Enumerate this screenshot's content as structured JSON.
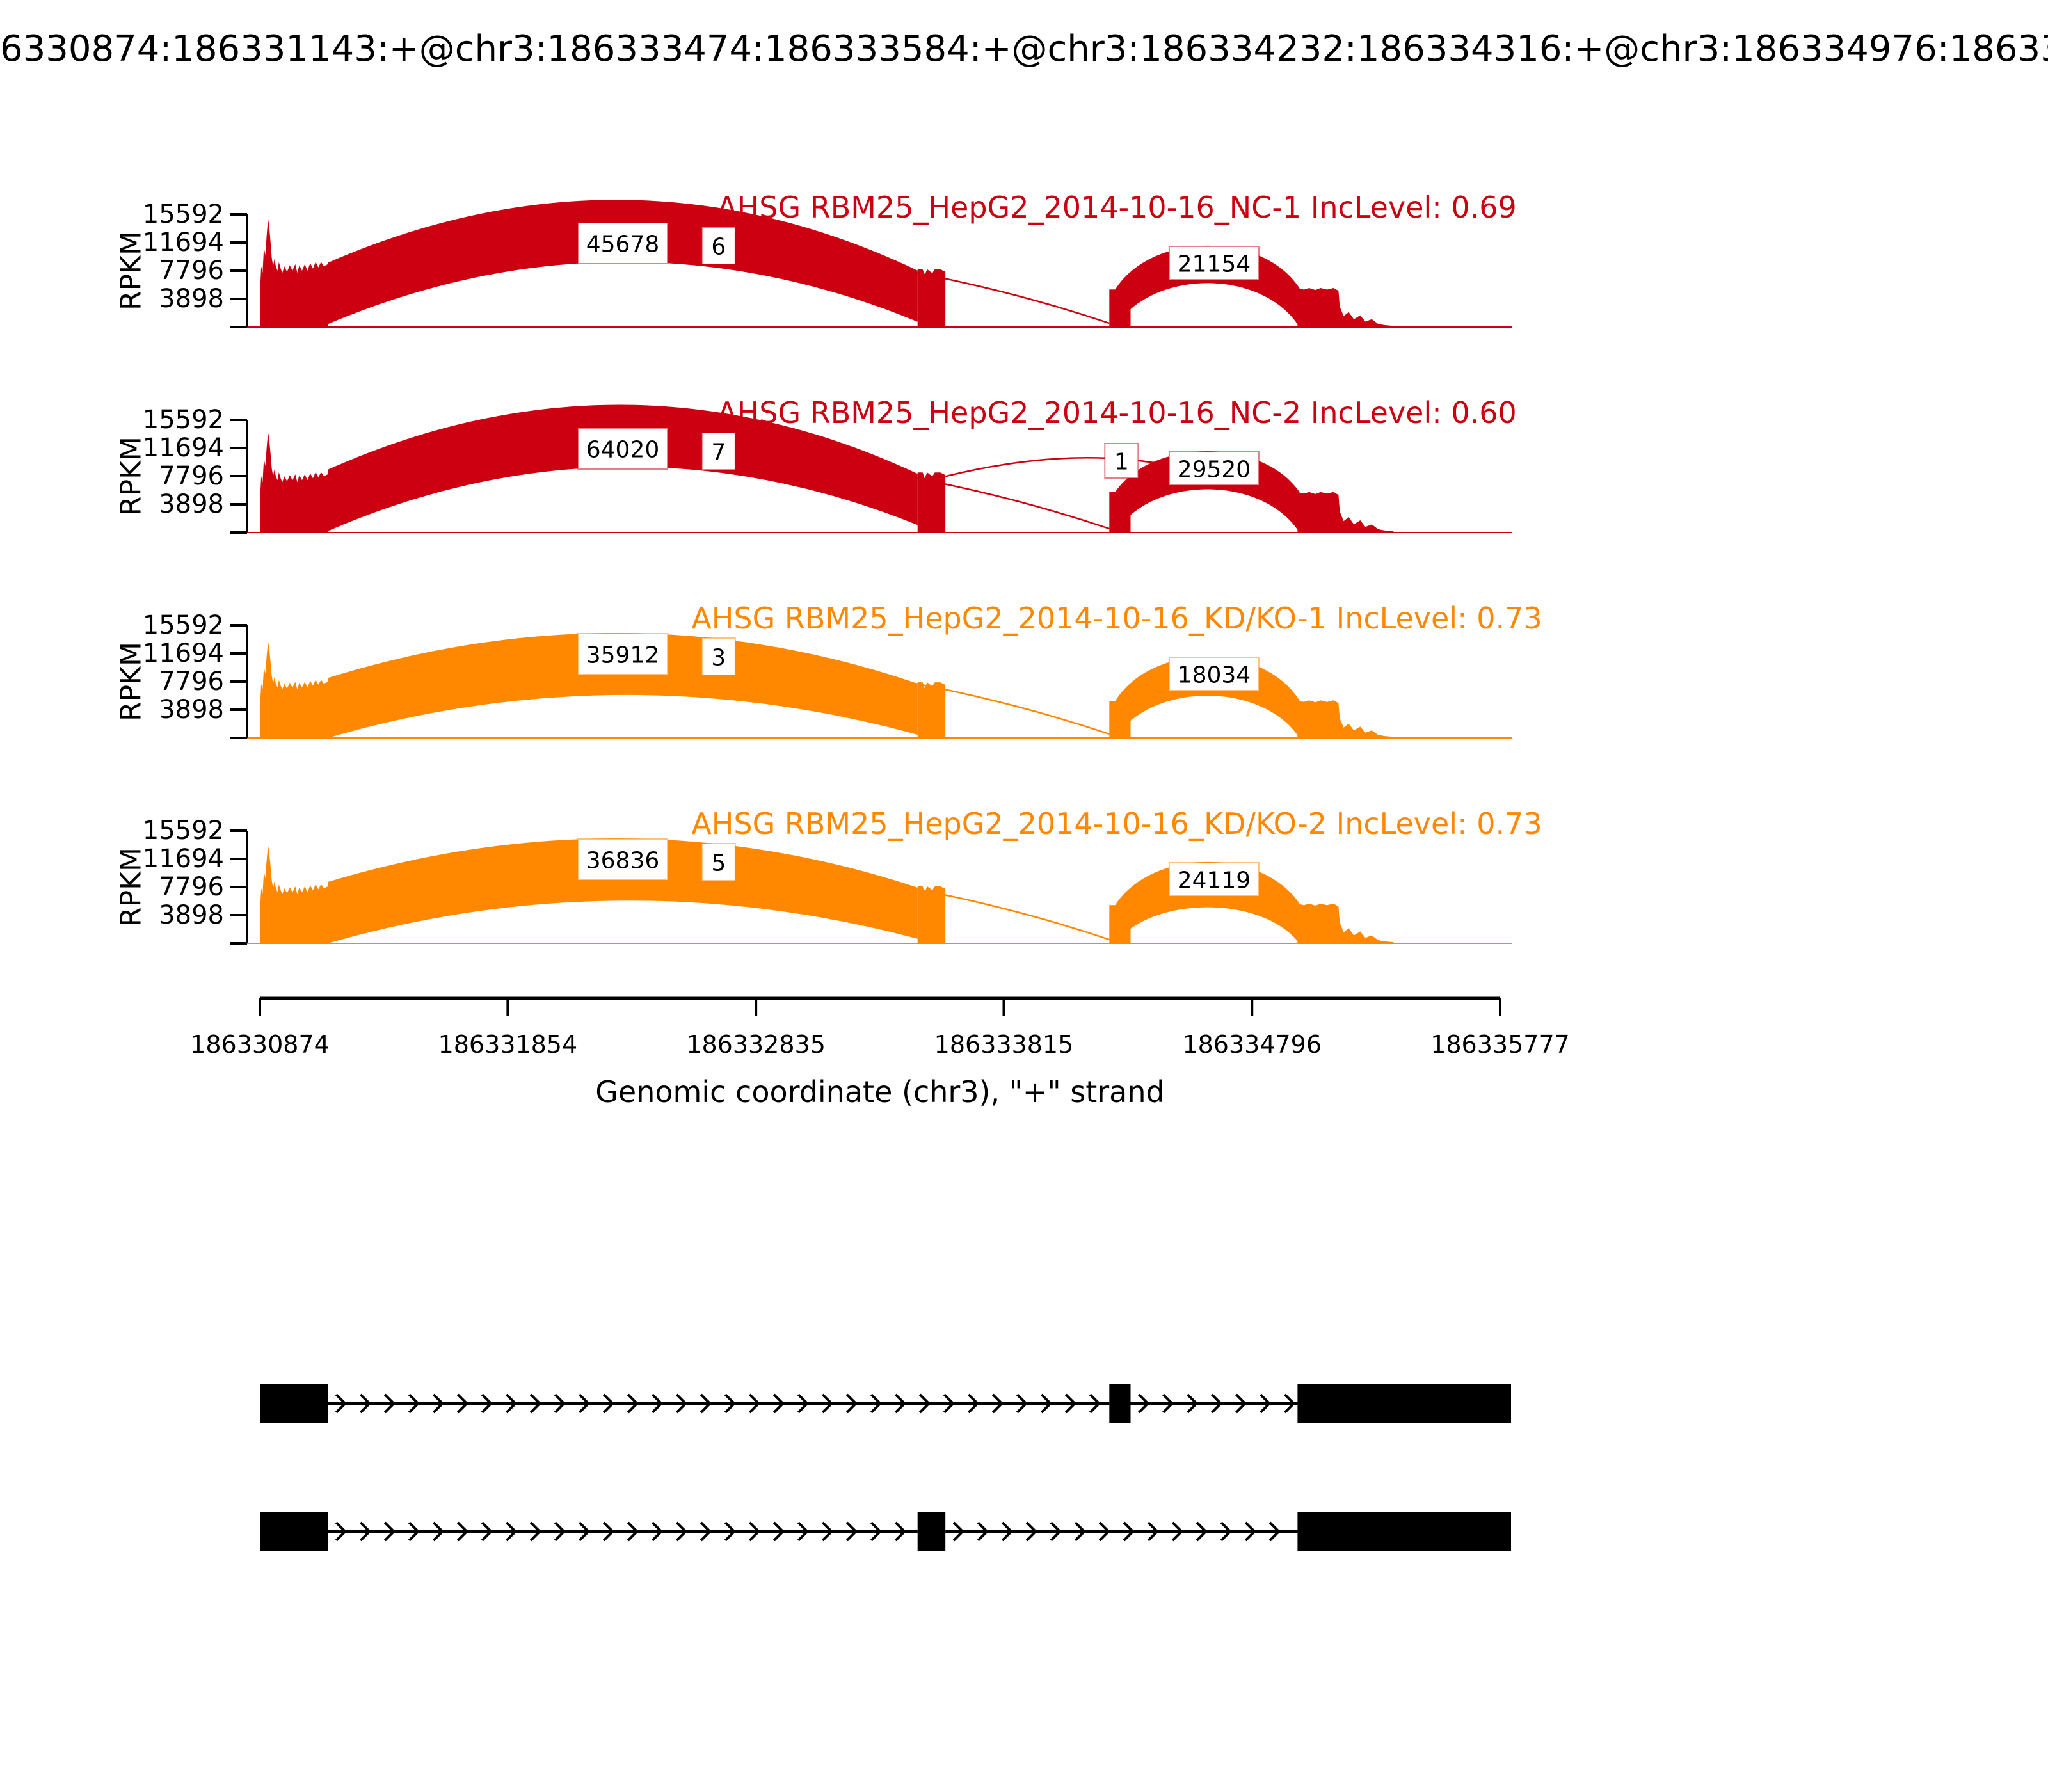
{
  "title": "6330874:186331143:+@chr3:186333474:186333584:+@chr3:186334232:186334316:+@chr3:186334976:18633",
  "chart_data": {
    "type": "sashimi",
    "title": "6330874:186331143:+@chr3:186333474:186333584:+@chr3:186334232:186334316:+@chr3:186334976:18633",
    "xlabel": "Genomic coordinate (chr3), \"+\" strand",
    "ylabel": "RPKM",
    "chromosome": "chr3",
    "strand": "+",
    "x_ticks": [
      186330874,
      186331854,
      186332835,
      186333815,
      186334796,
      186335777
    ],
    "y_ticks": [
      3898,
      7796,
      11694,
      15592
    ],
    "colors": {
      "control": "#CC0011",
      "knockdown": "#FF8800"
    },
    "exons": [
      {
        "id": 1,
        "start": 186330874,
        "end": 186331143
      },
      {
        "id": 2,
        "start": 186333474,
        "end": 186333584
      },
      {
        "id": 3,
        "start": 186334232,
        "end": 186334316
      },
      {
        "id": 4,
        "start": 186334976,
        "end": 186335820
      }
    ],
    "tracks": [
      {
        "name": "AHSG RBM25_HepG2_2014-10-16_NC-1",
        "inc_level_label": "IncLevel: 0.69",
        "inc_level": 0.69,
        "color": "#CC0011",
        "coverage": {
          "exon1_peak": 15000,
          "exon1_plateau": 8900,
          "exon2": 8000,
          "exon3": 5200,
          "exon4": 5400
        },
        "junctions": [
          {
            "from_exon": 1,
            "to_exon": 2,
            "count": 45678
          },
          {
            "from_exon": 1,
            "to_exon": 3,
            "count": 6
          },
          {
            "from_exon": 3,
            "to_exon": 4,
            "count": 21154
          }
        ]
      },
      {
        "name": "AHSG RBM25_HepG2_2014-10-16_NC-2",
        "inc_level_label": "IncLevel: 0.60",
        "inc_level": 0.6,
        "color": "#CC0011",
        "coverage": {
          "exon1_peak": 13900,
          "exon1_plateau": 8700,
          "exon2": 8300,
          "exon3": 5600,
          "exon4": 5600
        },
        "junctions": [
          {
            "from_exon": 1,
            "to_exon": 2,
            "count": 64020
          },
          {
            "from_exon": 1,
            "to_exon": 3,
            "count": 7
          },
          {
            "from_exon": 2,
            "to_exon": 4,
            "count": 1
          },
          {
            "from_exon": 3,
            "to_exon": 4,
            "count": 29520
          }
        ]
      },
      {
        "name": "AHSG RBM25_HepG2_2014-10-16_KD/KO-1",
        "inc_level_label": "IncLevel: 0.73",
        "inc_level": 0.73,
        "color": "#FF8800",
        "coverage": {
          "exon1_peak": 13400,
          "exon1_plateau": 8300,
          "exon2": 7700,
          "exon3": 5100,
          "exon4": 5200
        },
        "junctions": [
          {
            "from_exon": 1,
            "to_exon": 2,
            "count": 35912
          },
          {
            "from_exon": 1,
            "to_exon": 3,
            "count": 3
          },
          {
            "from_exon": 3,
            "to_exon": 4,
            "count": 18034
          }
        ]
      },
      {
        "name": "AHSG RBM25_HepG2_2014-10-16_KD/KO-2",
        "inc_level_label": "IncLevel: 0.73",
        "inc_level": 0.73,
        "color": "#FF8800",
        "coverage": {
          "exon1_peak": 13600,
          "exon1_plateau": 8500,
          "exon2": 7900,
          "exon3": 5300,
          "exon4": 5500
        },
        "junctions": [
          {
            "from_exon": 1,
            "to_exon": 2,
            "count": 36836
          },
          {
            "from_exon": 1,
            "to_exon": 3,
            "count": 5
          },
          {
            "from_exon": 3,
            "to_exon": 4,
            "count": 24119
          }
        ]
      }
    ],
    "isoforms": [
      {
        "exon_ids": [
          1,
          3,
          4
        ]
      },
      {
        "exon_ids": [
          1,
          2,
          4
        ]
      }
    ]
  }
}
